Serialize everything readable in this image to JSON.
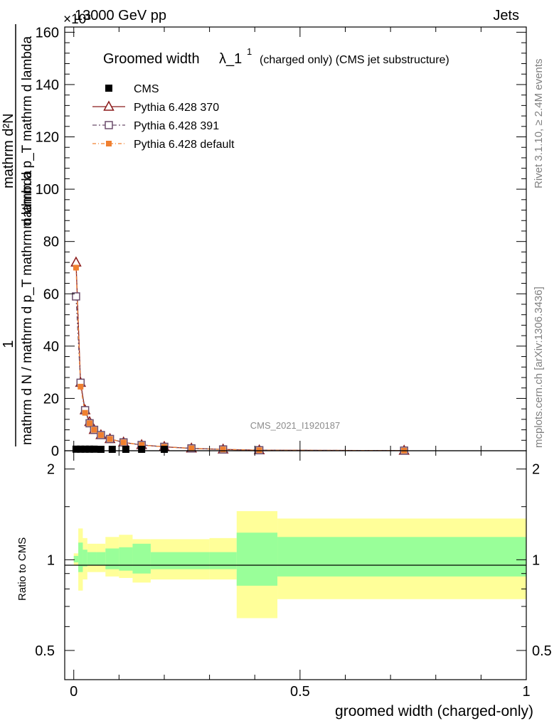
{
  "header": {
    "energy": "13000 GeV pp",
    "process": "Jets",
    "exponent": "×10³"
  },
  "side_labels": {
    "rivet": "Rivet 3.1.10, ≥ 2.4M events",
    "mcplots": "mcplots.cern.ch [arXiv:1306.3436]"
  },
  "chart_data": [
    {
      "type": "line",
      "title": "Groomed width λ_1¹ (charged only) (CMS jet substructure)",
      "title_main": "Groomed width",
      "title_lambda": "λ_1",
      "title_sup": "1",
      "title_suffix": "(charged only) (CMS jet substructure)",
      "analysis": "CMS_2021_I1920187",
      "ylabel_numerator": "1",
      "ylabel_denominator": "mathrm d N / mathrm d p_T mathrm d lambda",
      "ylabel_top": "mathrm d²N",
      "ylabel_bottom_text": "mathrm d p_T mathrm d lambda",
      "scale": 1000,
      "xlim": [
        -0.02,
        1.0
      ],
      "ylim": [
        0,
        162
      ],
      "yticks": [
        0,
        20,
        40,
        60,
        80,
        100,
        120,
        140,
        160
      ],
      "yticklabels": [
        "0",
        "20",
        "40",
        "60",
        "80",
        "100",
        "120",
        "140",
        "160"
      ],
      "legend": [
        "CMS",
        "Pythia 6.428 370",
        "Pythia 6.428 391",
        "Pythia 6.428 default"
      ],
      "legend_position": "top-left",
      "series": [
        {
          "name": "CMS",
          "marker": "filled-square",
          "color": "#000000",
          "x": [
            0.005,
            0.015,
            0.025,
            0.035,
            0.045,
            0.06,
            0.085,
            0.115,
            0.15,
            0.2
          ],
          "y": [
            0.6,
            0.6,
            0.6,
            0.6,
            0.6,
            0.5,
            0.5,
            0.4,
            0.3,
            0.2
          ]
        },
        {
          "name": "Pythia 6.428 370",
          "marker": "open-triangle",
          "color": "#8b1a1a",
          "x": [
            0.005,
            0.015,
            0.025,
            0.035,
            0.045,
            0.06,
            0.08,
            0.11,
            0.15,
            0.2,
            0.26,
            0.33,
            0.41,
            0.73
          ],
          "y": [
            72,
            26,
            15.5,
            11,
            8,
            6,
            4.5,
            3.2,
            2.2,
            1.5,
            0.9,
            0.5,
            0.2,
            0.05
          ]
        },
        {
          "name": "Pythia 6.428 391",
          "marker": "open-square",
          "color": "#6b4c6b",
          "x": [
            0.005,
            0.015,
            0.025,
            0.035,
            0.045,
            0.06,
            0.08,
            0.11,
            0.15,
            0.2,
            0.26,
            0.33,
            0.41,
            0.73
          ],
          "y": [
            59,
            26,
            15.5,
            10.5,
            8,
            6,
            4.5,
            3.2,
            2.2,
            1.5,
            0.9,
            0.5,
            0.2,
            0.05
          ]
        },
        {
          "name": "Pythia 6.428 default",
          "marker": "filled-small-square",
          "color": "#f08030",
          "x": [
            0.005,
            0.015,
            0.025,
            0.035,
            0.045,
            0.06,
            0.08,
            0.11,
            0.15,
            0.2,
            0.26,
            0.33,
            0.41,
            0.73
          ],
          "y": [
            70,
            24.5,
            14.5,
            10.5,
            8,
            6,
            4.5,
            3.2,
            2.2,
            1.5,
            0.9,
            0.5,
            0.2,
            0.05
          ]
        }
      ]
    },
    {
      "type": "area",
      "title": "Ratio to CMS",
      "ylabel": "Ratio to CMS",
      "xlabel": "groomed width (charged-only)",
      "xlim": [
        -0.02,
        1.0
      ],
      "ylim": [
        0.4,
        2.3
      ],
      "ytick_scale": "log",
      "yticks": [
        0.5,
        1,
        2
      ],
      "yticklabels": [
        "0.5",
        "1",
        "2"
      ],
      "xticks": [
        0,
        0.5,
        1
      ],
      "xticklabels": [
        "0",
        "0.5",
        "1"
      ],
      "bin_edges": [
        0,
        0.01,
        0.02,
        0.03,
        0.05,
        0.07,
        0.1,
        0.13,
        0.17,
        0.3,
        0.36,
        0.45,
        1.0
      ],
      "bands": [
        {
          "name": "total uncertainty",
          "color": "#ffff99",
          "low": [
            0.96,
            0.79,
            0.86,
            0.91,
            0.91,
            0.88,
            0.87,
            0.84,
            0.86,
            0.86,
            0.64,
            0.74
          ],
          "high": [
            1.05,
            1.27,
            1.18,
            1.13,
            1.13,
            1.19,
            1.21,
            1.17,
            1.17,
            1.18,
            1.45,
            1.37
          ]
        },
        {
          "name": "statistical uncertainty",
          "color": "#99ff99",
          "low": [
            0.98,
            0.91,
            0.95,
            0.96,
            0.96,
            0.93,
            0.92,
            0.9,
            0.93,
            0.93,
            0.82,
            0.88
          ],
          "high": [
            1.03,
            1.14,
            1.08,
            1.06,
            1.06,
            1.09,
            1.1,
            1.13,
            1.06,
            1.06,
            1.23,
            1.19
          ]
        }
      ]
    }
  ]
}
